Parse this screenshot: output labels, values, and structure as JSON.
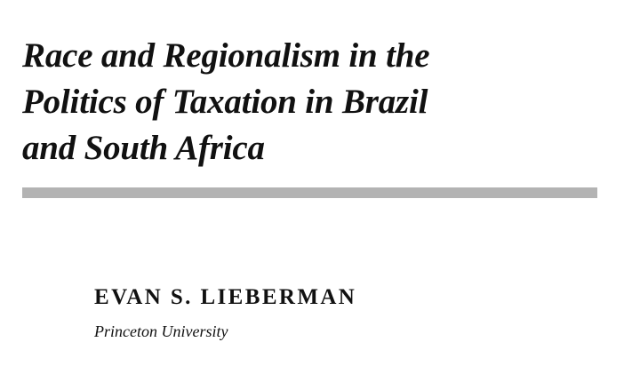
{
  "document": {
    "title_lines": [
      "Race and Regionalism in the",
      "Politics of Taxation in Brazil",
      "and South Africa"
    ],
    "author": "EVAN S. LIEBERMAN",
    "affiliation": "Princeton University"
  },
  "colors": {
    "text": "#111111",
    "rule": "#b3b3b3",
    "background": "#ffffff"
  }
}
